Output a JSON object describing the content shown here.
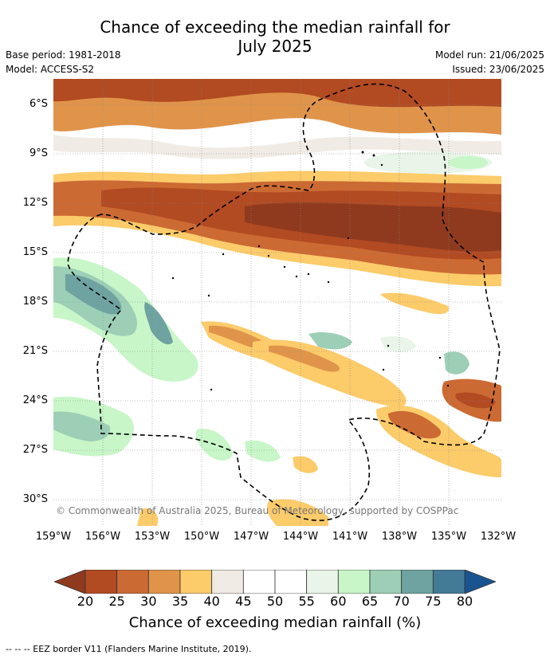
{
  "header": {
    "title_line1": "Chance of exceeding the median rainfall for",
    "title_line2": "July 2025",
    "base_period": "Base period: 1981-2018",
    "model": "Model: ACCESS-S2",
    "model_run": "Model run: 21/06/2025",
    "issued": "Issued: 23/06/2025"
  },
  "map": {
    "lat_ticks": [
      "6°S",
      "9°S",
      "12°S",
      "15°S",
      "18°S",
      "21°S",
      "24°S",
      "27°S",
      "30°S"
    ],
    "lon_ticks": [
      "159°W",
      "156°W",
      "153°W",
      "150°W",
      "147°W",
      "144°W",
      "141°W",
      "138°W",
      "135°W",
      "132°W"
    ],
    "copyright": "© Commonwealth of Australia 2025, Bureau of Meteorology, supported by COSPPac"
  },
  "colorbar": {
    "ticks": [
      "20",
      "25",
      "30",
      "35",
      "40",
      "45",
      "50",
      "55",
      "60",
      "65",
      "70",
      "75",
      "80"
    ],
    "colors": [
      "#8f3a1e",
      "#b24a22",
      "#cc6a33",
      "#e0944a",
      "#fccb6a",
      "#f0ebe4",
      "#ffffff",
      "#ffffff",
      "#e8f5e8",
      "#c8f6c8",
      "#9dcfb6",
      "#6ea3a1",
      "#437b97",
      "#1a5490"
    ],
    "label": "Chance of exceeding median rainfall (%)"
  },
  "footnote": "--  --  -- EEZ border V11 (Flanders Marine Institute, 2019)."
}
